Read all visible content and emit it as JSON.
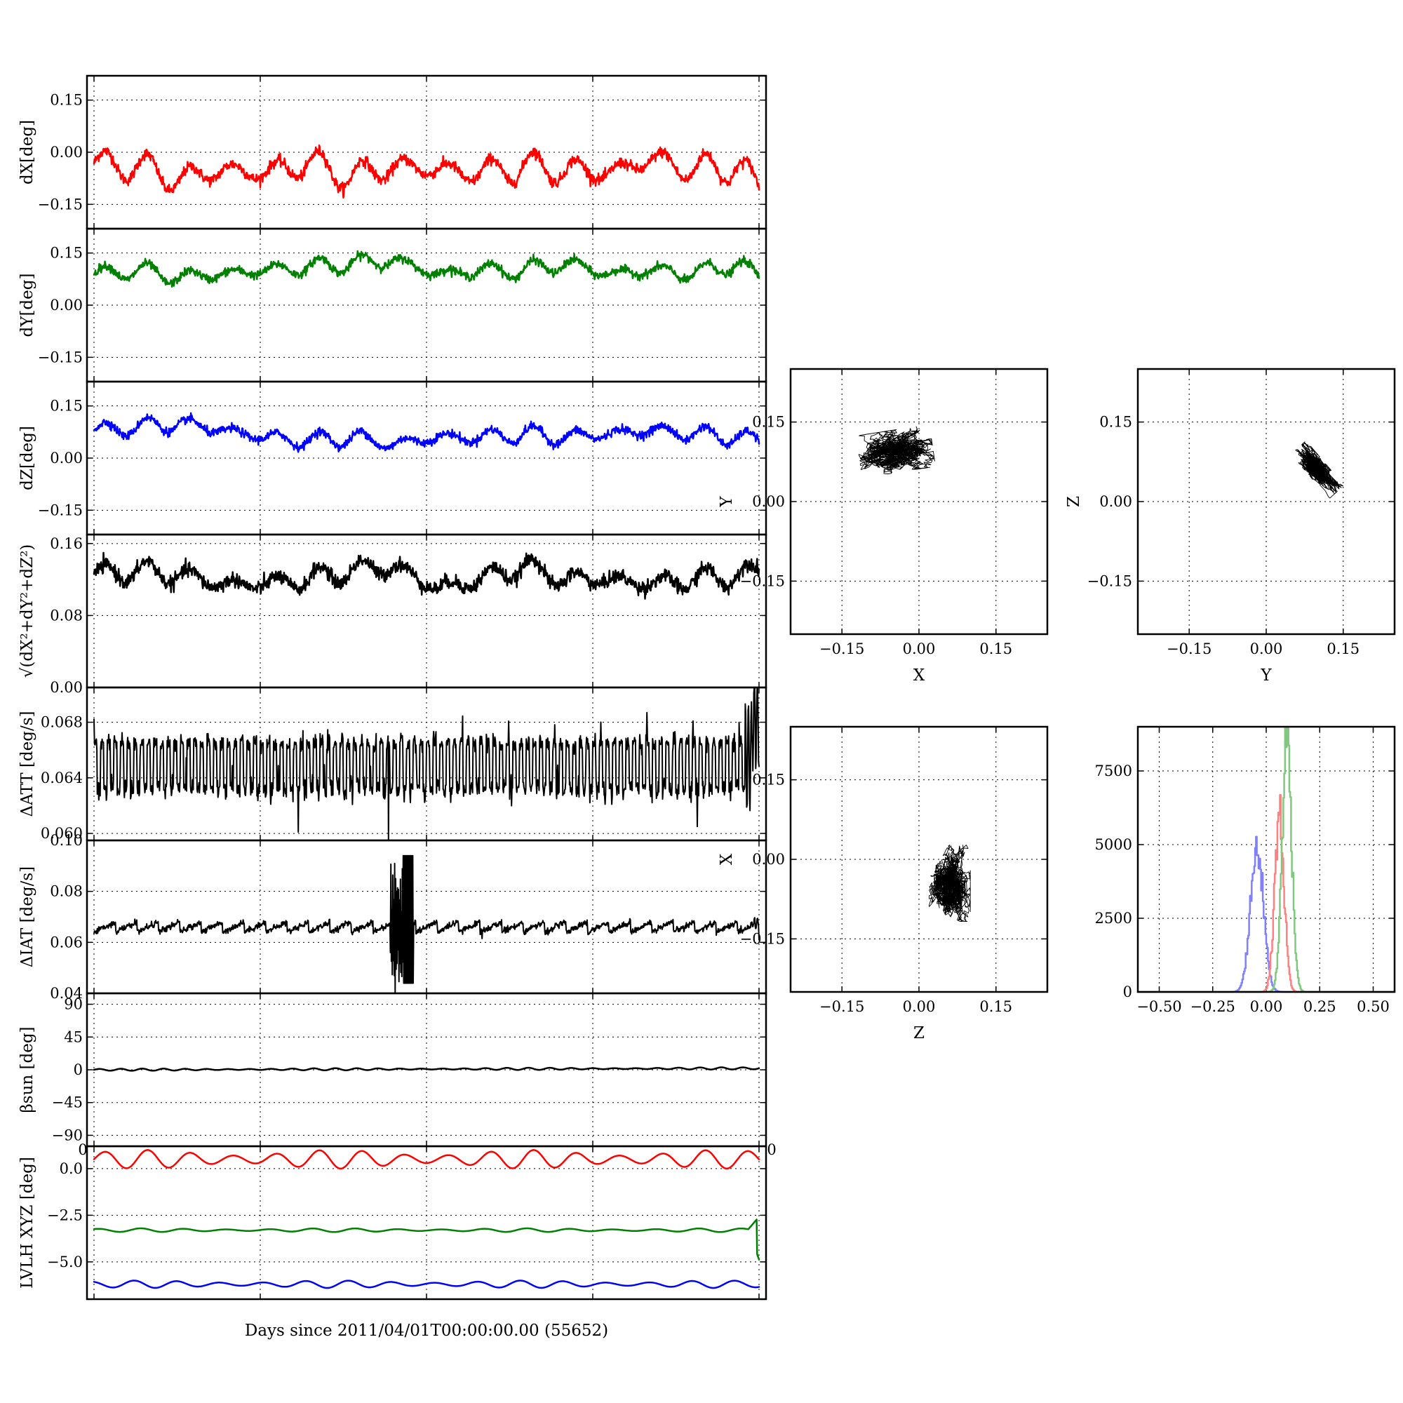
{
  "chart_data": [
    {
      "id": "dx",
      "type": "line",
      "ylabel": "dX[deg]",
      "ylim": [
        -0.22,
        0.22
      ],
      "yticks": [
        "0.15",
        "0.00",
        "−0.15"
      ],
      "ytick_values": [
        0.15,
        0.0,
        -0.15
      ],
      "xlim": [
        0,
        31
      ],
      "xticks": [
        0,
        7.75,
        15.5,
        23.25,
        31
      ],
      "series": [
        {
          "color": "#ff0000",
          "mean": -0.045,
          "amplitude": 0.045,
          "period": 2.0,
          "noise": 0.008,
          "x": [
            0,
            2,
            4,
            6,
            8,
            10,
            12,
            14,
            16,
            18,
            20,
            22,
            24,
            26,
            28,
            30,
            31
          ],
          "y": [
            -0.03,
            -0.04,
            -0.08,
            -0.05,
            -0.06,
            -0.03,
            -0.07,
            -0.04,
            -0.05,
            -0.06,
            -0.04,
            -0.05,
            -0.06,
            -0.02,
            -0.05,
            -0.04,
            -0.1
          ]
        }
      ]
    },
    {
      "id": "dy",
      "type": "line",
      "ylabel": "dY[deg]",
      "ylim": [
        -0.22,
        0.22
      ],
      "yticks": [
        "0.15",
        "0.00",
        "−0.15"
      ],
      "ytick_values": [
        0.15,
        0.0,
        -0.15
      ],
      "xlim": [
        0,
        31
      ],
      "xticks": [
        0,
        7.75,
        15.5,
        23.25,
        31
      ],
      "series": [
        {
          "color": "#008000",
          "mean": 0.095,
          "amplitude": 0.025,
          "period": 2.0,
          "noise": 0.006,
          "x": [
            0,
            2,
            4,
            6,
            8,
            10,
            12,
            14,
            16,
            18,
            20,
            22,
            24,
            26,
            28,
            30,
            31
          ],
          "y": [
            0.09,
            0.1,
            0.08,
            0.09,
            0.1,
            0.11,
            0.12,
            0.13,
            0.09,
            0.1,
            0.1,
            0.12,
            0.09,
            0.1,
            0.09,
            0.12,
            0.08
          ]
        }
      ]
    },
    {
      "id": "dz",
      "type": "line",
      "ylabel": "dZ[deg]",
      "ylim": [
        -0.22,
        0.22
      ],
      "yticks": [
        "0.15",
        "0.00",
        "−0.15"
      ],
      "ytick_values": [
        0.15,
        0.0,
        -0.15
      ],
      "xlim": [
        0,
        31
      ],
      "xticks": [
        0,
        7.75,
        15.5,
        23.25,
        31
      ],
      "series": [
        {
          "color": "#0000ff",
          "mean": 0.06,
          "amplitude": 0.025,
          "period": 2.0,
          "noise": 0.006,
          "x": [
            0,
            2,
            4,
            6,
            8,
            10,
            12,
            14,
            16,
            18,
            20,
            22,
            24,
            26,
            28,
            30,
            31
          ],
          "y": [
            0.08,
            0.09,
            0.1,
            0.08,
            0.06,
            0.05,
            0.06,
            0.04,
            0.06,
            0.06,
            0.07,
            0.06,
            0.07,
            0.08,
            0.07,
            0.06,
            0.05
          ]
        }
      ]
    },
    {
      "id": "rss",
      "type": "line",
      "ylabel": "√(dX²+dY²+dZ²)",
      "ylim": [
        0,
        0.17
      ],
      "yticks": [
        "0.16",
        "0.08",
        "0.00"
      ],
      "ytick_values": [
        0.16,
        0.08,
        0.0
      ],
      "xlim": [
        0,
        31
      ],
      "xticks": [
        0,
        7.75,
        15.5,
        23.25,
        31
      ],
      "series": [
        {
          "color": "#000000",
          "mean": 0.12,
          "amplitude": 0.012,
          "period": 2.0,
          "noise": 0.004,
          "x": [
            0,
            2,
            4,
            6,
            8,
            10,
            12,
            14,
            16,
            18,
            20,
            22,
            24,
            26,
            28,
            30,
            31
          ],
          "y": [
            0.125,
            0.13,
            0.125,
            0.115,
            0.115,
            0.12,
            0.13,
            0.135,
            0.11,
            0.12,
            0.135,
            0.12,
            0.12,
            0.115,
            0.12,
            0.125,
            0.13
          ]
        }
      ]
    },
    {
      "id": "datt",
      "type": "line",
      "ylabel": "ΔATT [deg/s]",
      "ylim": [
        0.0595,
        0.0705
      ],
      "yticks": [
        "0.068",
        "0.064",
        "0.060"
      ],
      "ytick_values": [
        0.068,
        0.064,
        0.06
      ],
      "xlim": [
        0,
        31
      ],
      "xticks": [
        0,
        7.75,
        15.5,
        23.25,
        31
      ],
      "series": [
        {
          "color": "#000000",
          "mean": 0.0652,
          "band_low": 0.0632,
          "band_high": 0.0665,
          "x": [
            0,
            5,
            10,
            15,
            20,
            25,
            30,
            31
          ],
          "y": [
            0.0652,
            0.0651,
            0.0653,
            0.0652,
            0.0653,
            0.0652,
            0.065,
            0.069
          ]
        }
      ]
    },
    {
      "id": "diat",
      "type": "line",
      "ylabel": "ΔIAT [deg/s]",
      "ylim": [
        0.04,
        0.1
      ],
      "yticks": [
        "0.10",
        "0.08",
        "0.06",
        "0.04"
      ],
      "ytick_values": [
        0.1,
        0.08,
        0.06,
        0.04
      ],
      "xlim": [
        0,
        31
      ],
      "xticks": [
        0,
        7.75,
        15.5,
        23.25,
        31
      ],
      "series": [
        {
          "color": "#000000",
          "mean": 0.066,
          "sawtooth": 0.004,
          "period": 1.0,
          "x": [
            0,
            5,
            10,
            14,
            14.5,
            15,
            15.5,
            20,
            25,
            30,
            31
          ],
          "y": [
            0.066,
            0.066,
            0.066,
            0.066,
            0.09,
            0.045,
            0.067,
            0.066,
            0.066,
            0.066,
            0.068
          ]
        }
      ]
    },
    {
      "id": "beta",
      "type": "line",
      "ylabel": "βsun [deg]",
      "ylim": [
        -105,
        105
      ],
      "yticks": [
        "90",
        "45",
        "0",
        "−45",
        "−90"
      ],
      "ytick_values": [
        90,
        45,
        0,
        -45,
        -90
      ],
      "xlim": [
        0,
        31
      ],
      "xticks": [
        0,
        7.75,
        15.5,
        23.25,
        31
      ],
      "series": [
        {
          "color": "#000000",
          "mean": 0.5,
          "amplitude": 1.5,
          "period": 1.0,
          "x": [
            0,
            31
          ],
          "y": [
            0,
            2
          ]
        }
      ]
    },
    {
      "id": "lvlh",
      "type": "line",
      "ylabel": "LVLH XYZ [deg]",
      "ylim": [
        -7,
        1.2
      ],
      "yticks": [
        "0.0",
        "−2.5",
        "−5.0"
      ],
      "ytick_values": [
        0.0,
        -2.5,
        -5.0
      ],
      "xlim": [
        0,
        31
      ],
      "xticks": [
        0,
        7.75,
        15.5,
        23.25,
        31
      ],
      "xlabel": "Days since 2011/04/01T00:00:00.00 (55652)",
      "top_tick_labels": [
        "0",
        "0"
      ],
      "series": [
        {
          "color": "#ff0000",
          "mean": 0.5,
          "amplitude": 0.5,
          "period": 2.0,
          "x": [
            0,
            31
          ],
          "y": [
            0.5,
            0.5
          ]
        },
        {
          "color": "#008000",
          "mean": -3.3,
          "amplitude": 0.1,
          "period": 2.0,
          "x": [
            0,
            31
          ],
          "y": [
            -3.3,
            -3.3
          ]
        },
        {
          "color": "#0000ff",
          "mean": -6.2,
          "amplitude": 0.2,
          "period": 2.0,
          "x": [
            0,
            31
          ],
          "y": [
            -6.2,
            -6.2
          ]
        }
      ]
    },
    {
      "id": "xy",
      "type": "scatter",
      "xlabel": "X",
      "ylabel": "Y",
      "xlim": [
        -0.25,
        0.25
      ],
      "ylim": [
        -0.25,
        0.25
      ],
      "xticks": [
        "−0.15",
        "0.00",
        "0.15"
      ],
      "yticks": [
        "0.15",
        "0.00",
        "−0.15"
      ],
      "tick_values": [
        -0.15,
        0.0,
        0.15
      ],
      "cluster": {
        "center": [
          -0.045,
          0.095
        ],
        "spread": [
          0.045,
          0.025
        ],
        "tilt": 0.15
      }
    },
    {
      "id": "yz",
      "type": "scatter",
      "xlabel": "Y",
      "ylabel": "Z",
      "xlim": [
        -0.25,
        0.25
      ],
      "ylim": [
        -0.25,
        0.25
      ],
      "xticks": [
        "−0.15",
        "0.00",
        "0.15"
      ],
      "yticks": [
        "0.15",
        "0.00",
        "−0.15"
      ],
      "tick_values": [
        -0.15,
        0.0,
        0.15
      ],
      "cluster": {
        "center": [
          0.1,
          0.06
        ],
        "spread": [
          0.035,
          0.012
        ],
        "tilt": -0.85
      }
    },
    {
      "id": "zx",
      "type": "scatter",
      "xlabel": "Z",
      "ylabel": "X",
      "xlim": [
        -0.25,
        0.25
      ],
      "ylim": [
        -0.25,
        0.25
      ],
      "xticks": [
        "−0.15",
        "0.00",
        "0.15"
      ],
      "yticks": [
        "0.15",
        "0.00",
        "−0.15"
      ],
      "tick_values": [
        -0.15,
        0.0,
        0.15
      ],
      "cluster": {
        "center": [
          0.06,
          -0.045
        ],
        "spread": [
          0.025,
          0.045
        ],
        "tilt": 0.0
      }
    },
    {
      "id": "hist",
      "type": "bar",
      "xlim": [
        -0.6,
        0.6
      ],
      "ylim": [
        0,
        9000
      ],
      "xticks": [
        "−0.50",
        "−0.25",
        "0.00",
        "0.25",
        "0.50"
      ],
      "xtick_values": [
        -0.5,
        -0.25,
        0.0,
        0.25,
        0.5
      ],
      "yticks": [
        "7500",
        "5000",
        "2500",
        "0"
      ],
      "ytick_values": [
        7500,
        5000,
        2500,
        0
      ],
      "series": [
        {
          "color": "#8080ff",
          "center": -0.045,
          "sigma": 0.03,
          "peak": 5000
        },
        {
          "color": "#ff8080",
          "center": 0.06,
          "sigma": 0.022,
          "peak": 6000
        },
        {
          "color": "#80c880",
          "center": 0.095,
          "sigma": 0.022,
          "peak": 8700
        }
      ]
    }
  ]
}
